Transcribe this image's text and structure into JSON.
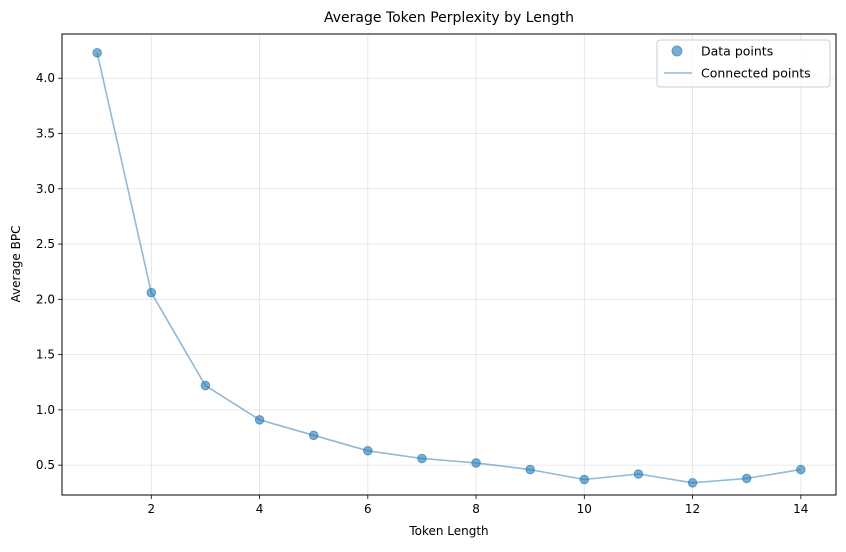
{
  "chart_data": {
    "type": "line",
    "title": "Average Token Perplexity by Length",
    "xlabel": "Token Length",
    "ylabel": "Average BPC",
    "xlim": [
      0.35,
      14.65
    ],
    "ylim": [
      0.23,
      4.4
    ],
    "xticks": [
      2,
      4,
      6,
      8,
      10,
      12,
      14
    ],
    "yticks": [
      0.5,
      1.0,
      1.5,
      2.0,
      2.5,
      3.0,
      3.5,
      4.0
    ],
    "ytick_labels": [
      "0.5",
      "1.0",
      "1.5",
      "2.0",
      "2.5",
      "3.0",
      "3.5",
      "4.0"
    ],
    "grid": true,
    "legend_position": "top-right",
    "x": [
      1,
      2,
      3,
      4,
      5,
      6,
      7,
      8,
      9,
      10,
      11,
      12,
      13,
      14
    ],
    "series": [
      {
        "name": "Data points",
        "mark": "scatter",
        "color": "#1f77b4",
        "values": [
          4.23,
          2.06,
          1.22,
          0.91,
          0.77,
          0.63,
          0.56,
          0.52,
          0.46,
          0.37,
          0.42,
          0.34,
          0.38,
          0.46
        ]
      },
      {
        "name": "Connected points",
        "mark": "line",
        "color": "#1f77b4",
        "values": [
          4.23,
          2.06,
          1.22,
          0.91,
          0.77,
          0.63,
          0.56,
          0.52,
          0.46,
          0.37,
          0.42,
          0.34,
          0.38,
          0.46
        ]
      }
    ]
  }
}
